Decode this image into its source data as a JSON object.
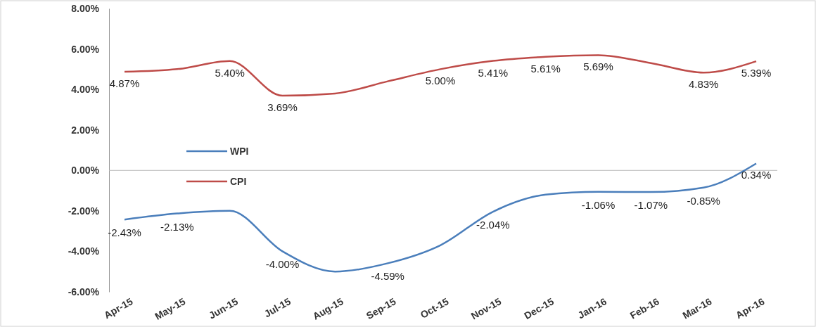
{
  "chart_data": {
    "type": "line",
    "categories": [
      "Apr-15",
      "May-15",
      "Jun-15",
      "Jul-15",
      "Aug-15",
      "Sep-15",
      "Oct-15",
      "Nov-15",
      "Dec-15",
      "Jan-16",
      "Feb-16",
      "Mar-16",
      "Apr-16"
    ],
    "series": [
      {
        "name": "WPI",
        "color": "#4a7ebb",
        "values": [
          -2.43,
          -2.13,
          -2.0,
          -4.0,
          -5.0,
          -4.59,
          -3.7,
          -2.04,
          -1.2,
          -1.06,
          -1.07,
          -0.85,
          0.34
        ],
        "value_labels": [
          "-2.43%",
          "-2.13%",
          null,
          "-4.00%",
          null,
          "-4.59%",
          null,
          "-2.04%",
          null,
          "-1.06%",
          "-1.07%",
          "-0.85%",
          "0.34%"
        ]
      },
      {
        "name": "CPI",
        "color": "#be4b48",
        "values": [
          4.87,
          5.0,
          5.4,
          3.69,
          3.8,
          4.4,
          5.0,
          5.41,
          5.61,
          5.69,
          5.3,
          4.83,
          5.39
        ],
        "value_labels": [
          "4.87%",
          null,
          "5.40%",
          "3.69%",
          null,
          null,
          "5.00%",
          "5.41%",
          "5.61%",
          "5.69%",
          null,
          "4.83%",
          "5.39%"
        ]
      }
    ],
    "ylim": [
      -6,
      8
    ],
    "yticks": [
      {
        "value": -6,
        "label": "-6.00%"
      },
      {
        "value": -4,
        "label": "-4.00%"
      },
      {
        "value": -2,
        "label": "-2.00%"
      },
      {
        "value": 0,
        "label": "0.00%"
      },
      {
        "value": 2,
        "label": "2.00%"
      },
      {
        "value": 4,
        "label": "4.00%"
      },
      {
        "value": 6,
        "label": "6.00%"
      },
      {
        "value": 8,
        "label": "8.00%"
      }
    ],
    "legend": "left",
    "marker": "none",
    "line_style": "solid"
  }
}
